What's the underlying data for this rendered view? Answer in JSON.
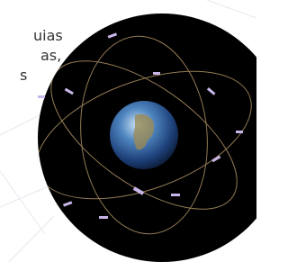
{
  "text_lines": [
    "uias",
    "as,",
    "s"
  ]
}
